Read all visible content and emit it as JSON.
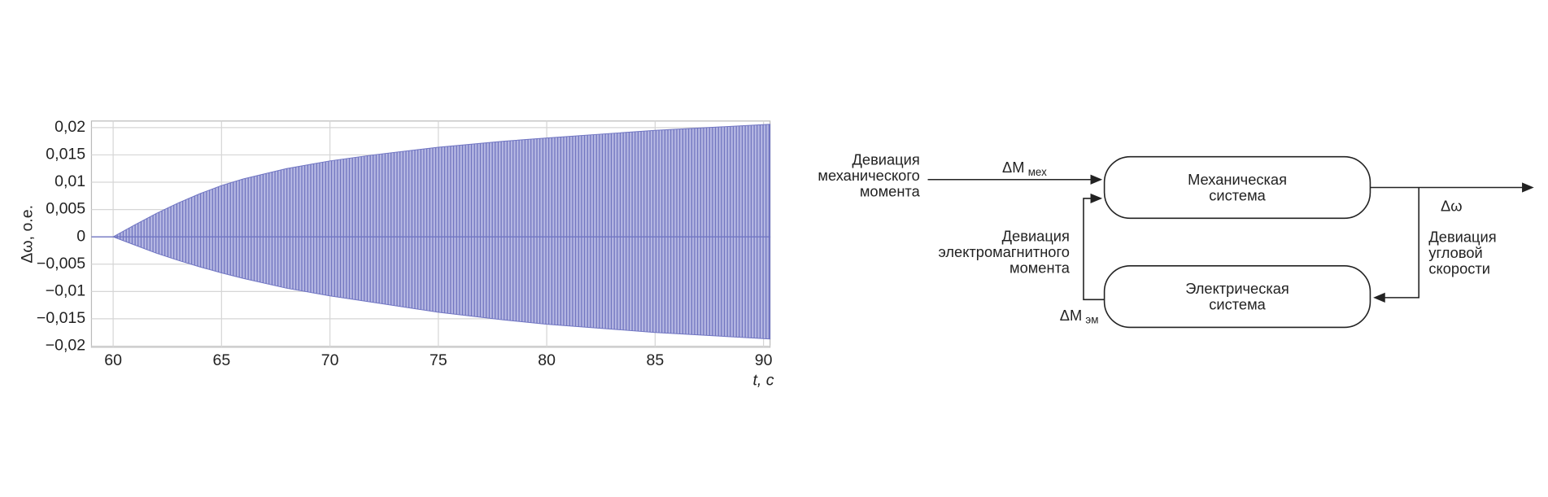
{
  "chart_data": {
    "type": "band",
    "y_label": "Δω, о.е.",
    "x_label": "t, с",
    "x": [
      59,
      60,
      61,
      62,
      63,
      64,
      65,
      66,
      68,
      70,
      72,
      75,
      78,
      80,
      85,
      90.3
    ],
    "y_upper": [
      0,
      0,
      0.0022,
      0.0043,
      0.0062,
      0.0079,
      0.0094,
      0.0106,
      0.0125,
      0.0139,
      0.015,
      0.0164,
      0.0175,
      0.0181,
      0.0195,
      0.0206
    ],
    "y_lower": [
      0,
      0,
      -0.0015,
      -0.003,
      -0.0043,
      -0.0055,
      -0.0066,
      -0.0076,
      -0.0094,
      -0.0108,
      -0.012,
      -0.0138,
      -0.0152,
      -0.016,
      -0.0175,
      -0.0187
    ],
    "color": "#6f74c2",
    "xlim": [
      59,
      90.3
    ],
    "ylim": [
      -0.0202,
      0.0212
    ],
    "xticks": [
      60,
      65,
      70,
      75,
      80,
      85,
      90
    ],
    "yticks": [
      {
        "value": -0.02,
        "label": "−0,02"
      },
      {
        "value": -0.015,
        "label": "−0,015"
      },
      {
        "value": -0.01,
        "label": "−0,01"
      },
      {
        "value": -0.005,
        "label": "−0,005"
      },
      0,
      {
        "value": 0.005,
        "label": "0,005"
      },
      {
        "value": 0.01,
        "label": "0,01"
      },
      {
        "value": 0.015,
        "label": "0,015"
      },
      {
        "value": 0.02,
        "label": "0,02"
      }
    ],
    "grid": true
  },
  "diagram": {
    "nodes": [
      {
        "lines": [
          "Механическая",
          "система"
        ]
      },
      {
        "lines": [
          "Электрическая",
          "система"
        ]
      }
    ],
    "labels": {
      "input": [
        "Девиация",
        "механического",
        "момента"
      ],
      "input_symbol": {
        "main": "ΔM",
        "sub": "мех"
      },
      "output_symbol": "Δω",
      "output": [
        "Девиация",
        "угловой",
        "скорости"
      ],
      "feedback": [
        "Девиация",
        "электромагнитного",
        "момента"
      ],
      "feedback_symbol": {
        "main": "ΔM",
        "sub": "эм"
      }
    }
  }
}
